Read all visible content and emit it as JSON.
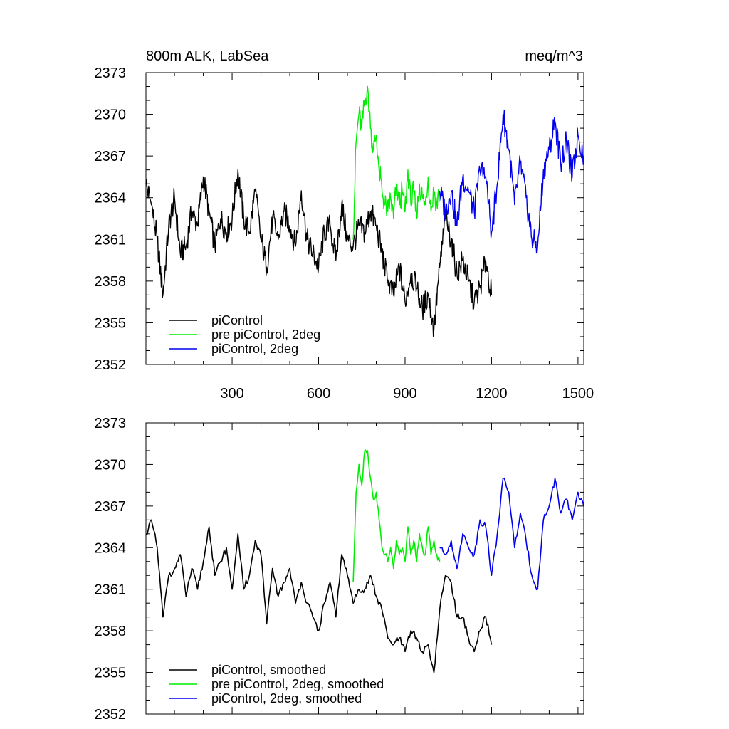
{
  "chart_data": [
    {
      "type": "line",
      "title_left": "800m ALK, LabSea",
      "title_right": "meq/m^3",
      "xlabel": "",
      "ylabel": "",
      "xlim": [
        1,
        1520
      ],
      "ylim": [
        2352,
        2373
      ],
      "xticks": [
        300,
        600,
        900,
        1200,
        1500
      ],
      "yticks": [
        2352,
        2355,
        2358,
        2361,
        2364,
        2367,
        2370,
        2373
      ],
      "show_xtick_labels": true,
      "legend_position": "bottom-left",
      "series": [
        {
          "name": "piControl",
          "color": "#000000",
          "smoothed": false,
          "x": [
            1,
            20,
            40,
            60,
            80,
            100,
            120,
            140,
            160,
            180,
            200,
            220,
            240,
            260,
            280,
            300,
            320,
            340,
            360,
            380,
            400,
            420,
            440,
            460,
            480,
            500,
            520,
            540,
            560,
            580,
            600,
            620,
            640,
            660,
            680,
            700,
            720,
            740,
            760,
            780,
            800,
            820,
            840,
            860,
            880,
            900,
            920,
            940,
            960,
            980,
            1000,
            1020,
            1040,
            1060,
            1080,
            1100,
            1120,
            1140,
            1160,
            1180,
            1200
          ],
          "values": [
            2365.0,
            2363.5,
            2361.0,
            2357.0,
            2362.0,
            2364.0,
            2360.0,
            2360.5,
            2363.0,
            2362.0,
            2365.5,
            2363.0,
            2360.5,
            2362.5,
            2361.5,
            2362.5,
            2366.0,
            2362.5,
            2361.5,
            2364.5,
            2361.0,
            2359.0,
            2362.5,
            2361.0,
            2363.0,
            2362.0,
            2360.5,
            2364.5,
            2361.0,
            2360.0,
            2359.0,
            2361.5,
            2362.0,
            2359.5,
            2363.5,
            2361.0,
            2360.5,
            2362.0,
            2361.5,
            2363.0,
            2362.0,
            2360.0,
            2358.0,
            2357.0,
            2359.0,
            2356.5,
            2358.5,
            2357.5,
            2356.0,
            2357.0,
            2354.5,
            2359.0,
            2362.5,
            2361.0,
            2358.5,
            2359.5,
            2358.0,
            2356.5,
            2357.5,
            2359.5,
            2357.0
          ]
        },
        {
          "name": "pre piControl, 2deg",
          "color": "#00ee00",
          "smoothed": false,
          "x": [
            720,
            730,
            740,
            750,
            760,
            770,
            780,
            790,
            800,
            810,
            820,
            830,
            840,
            850,
            860,
            870,
            880,
            890,
            900,
            910,
            920,
            930,
            940,
            950,
            960,
            970,
            980,
            990,
            1000,
            1010,
            1020
          ],
          "values": [
            2361.0,
            2368.0,
            2370.0,
            2369.0,
            2371.0,
            2372.0,
            2369.0,
            2367.5,
            2368.5,
            2366.0,
            2364.5,
            2363.5,
            2363.0,
            2364.0,
            2362.5,
            2365.0,
            2363.5,
            2364.5,
            2363.0,
            2366.0,
            2363.5,
            2364.5,
            2362.5,
            2365.0,
            2364.0,
            2363.5,
            2365.5,
            2363.0,
            2364.5,
            2363.5,
            2364.5
          ]
        },
        {
          "name": "piControl, 2deg",
          "color": "#0000ee",
          "smoothed": false,
          "x": [
            1020,
            1040,
            1060,
            1080,
            1100,
            1120,
            1140,
            1160,
            1180,
            1200,
            1220,
            1240,
            1260,
            1280,
            1300,
            1320,
            1340,
            1360,
            1380,
            1400,
            1420,
            1440,
            1460,
            1480,
            1500,
            1520
          ],
          "values": [
            2364.5,
            2363.0,
            2364.5,
            2362.0,
            2365.5,
            2364.5,
            2363.0,
            2366.0,
            2365.5,
            2361.5,
            2365.0,
            2370.0,
            2367.5,
            2363.5,
            2366.5,
            2364.0,
            2361.0,
            2360.5,
            2366.0,
            2367.5,
            2369.5,
            2366.5,
            2368.0,
            2365.5,
            2368.5,
            2367.0
          ]
        }
      ]
    },
    {
      "type": "line",
      "title_left": "",
      "title_right": "",
      "xlabel": "",
      "ylabel": "",
      "xlim": [
        1,
        1520
      ],
      "ylim": [
        2352,
        2373
      ],
      "xticks": [
        300,
        600,
        900,
        1200,
        1500
      ],
      "yticks": [
        2352,
        2355,
        2358,
        2361,
        2364,
        2367,
        2370,
        2373
      ],
      "show_xtick_labels": false,
      "legend_position": "bottom-left",
      "series": [
        {
          "name": "piControl, smoothed",
          "color": "#000000",
          "smoothed": true,
          "x": [
            1,
            20,
            40,
            60,
            80,
            100,
            120,
            140,
            160,
            180,
            200,
            220,
            240,
            260,
            280,
            300,
            320,
            340,
            360,
            380,
            400,
            420,
            440,
            460,
            480,
            500,
            520,
            540,
            560,
            580,
            600,
            620,
            640,
            660,
            680,
            700,
            720,
            740,
            760,
            780,
            800,
            820,
            840,
            860,
            880,
            900,
            920,
            940,
            960,
            980,
            1000,
            1020,
            1040,
            1060,
            1080,
            1100,
            1120,
            1140,
            1160,
            1180,
            1200
          ],
          "values": [
            2365.0,
            2366.0,
            2364.0,
            2359.0,
            2362.0,
            2362.5,
            2363.5,
            2360.5,
            2362.5,
            2361.0,
            2363.0,
            2365.5,
            2362.0,
            2363.0,
            2364.0,
            2361.0,
            2365.0,
            2361.0,
            2362.0,
            2364.5,
            2363.5,
            2358.5,
            2362.5,
            2360.5,
            2361.5,
            2362.5,
            2360.0,
            2361.5,
            2360.0,
            2359.0,
            2358.0,
            2360.0,
            2361.5,
            2359.0,
            2363.5,
            2362.0,
            2360.0,
            2361.0,
            2361.0,
            2362.0,
            2360.5,
            2359.5,
            2357.5,
            2357.0,
            2357.5,
            2356.5,
            2358.0,
            2357.5,
            2356.5,
            2357.0,
            2355.0,
            2359.5,
            2362.0,
            2361.5,
            2359.0,
            2359.0,
            2357.5,
            2356.5,
            2358.0,
            2359.0,
            2357.0
          ]
        },
        {
          "name": "pre piControl, 2deg, smoothed",
          "color": "#00ee00",
          "smoothed": true,
          "x": [
            720,
            730,
            740,
            750,
            760,
            770,
            780,
            790,
            800,
            810,
            820,
            830,
            840,
            850,
            860,
            870,
            880,
            890,
            900,
            910,
            920,
            930,
            940,
            950,
            960,
            970,
            980,
            990,
            1000,
            1010,
            1020
          ],
          "values": [
            2361.5,
            2368.0,
            2370.0,
            2368.5,
            2371.0,
            2371.0,
            2369.0,
            2367.5,
            2368.0,
            2366.0,
            2364.0,
            2363.5,
            2363.0,
            2364.0,
            2362.5,
            2364.5,
            2363.5,
            2364.0,
            2363.0,
            2365.5,
            2363.5,
            2364.5,
            2363.0,
            2365.0,
            2364.0,
            2363.5,
            2365.5,
            2363.5,
            2364.5,
            2363.5,
            2363.0
          ]
        },
        {
          "name": "piControl, 2deg, smoothed",
          "color": "#0000ee",
          "smoothed": true,
          "x": [
            1020,
            1040,
            1060,
            1080,
            1100,
            1120,
            1140,
            1160,
            1180,
            1200,
            1220,
            1240,
            1260,
            1280,
            1300,
            1320,
            1340,
            1360,
            1380,
            1400,
            1420,
            1440,
            1460,
            1480,
            1500,
            1520
          ],
          "values": [
            2364.0,
            2363.5,
            2364.5,
            2362.5,
            2365.0,
            2364.0,
            2363.5,
            2366.0,
            2365.5,
            2362.0,
            2365.0,
            2369.0,
            2368.0,
            2364.0,
            2366.5,
            2364.5,
            2362.0,
            2361.0,
            2366.0,
            2367.0,
            2369.0,
            2366.5,
            2367.5,
            2366.0,
            2368.0,
            2367.0
          ]
        }
      ]
    }
  ]
}
